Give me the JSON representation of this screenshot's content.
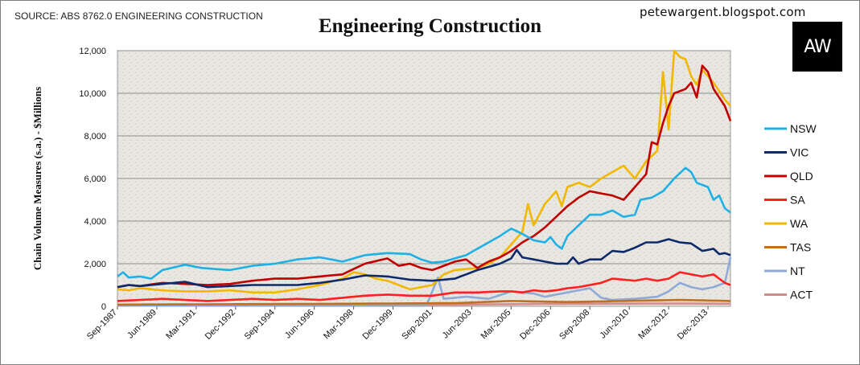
{
  "header": {
    "source": "SOURCE: ABS 8762.0 ENGINEERING CONSTRUCTION",
    "blog": "petewargent.blogspot.com",
    "logo_text": "AW"
  },
  "chart_data": {
    "type": "line",
    "title": "Engineering Construction",
    "xlabel": "",
    "ylabel": "Chain Volume Measures (s.a.) - $Millions",
    "ylim": [
      0,
      12000
    ],
    "yticks": [
      0,
      2000,
      4000,
      6000,
      8000,
      10000,
      12000
    ],
    "ytick_labels": [
      "0",
      "2,000",
      "4,000",
      "6,000",
      "8,000",
      "10,000",
      "12,000"
    ],
    "x_start_label": "Sep-1987",
    "x_period": "quarterly",
    "x_count": 110,
    "xtick_labels": [
      "Sep-1987",
      "Jun-1989",
      "Mar-1991",
      "Dec-1992",
      "Sep-1994",
      "Jun-1996",
      "Mar-1998",
      "Dec-1999",
      "Sep-2001",
      "Jun-2003",
      "Mar-2005",
      "Dec-2006",
      "Sep-2008",
      "Jun-2010",
      "Mar-2012",
      "Dec-2013"
    ],
    "xtick_index": [
      0,
      7,
      14,
      21,
      28,
      35,
      42,
      49,
      56,
      63,
      70,
      77,
      84,
      91,
      98,
      105
    ],
    "grid": true,
    "legend_position": "right",
    "series": [
      {
        "name": "NSW",
        "color": "#1fb0e6",
        "knots": [
          [
            0,
            1400
          ],
          [
            1,
            1600
          ],
          [
            2,
            1350
          ],
          [
            4,
            1400
          ],
          [
            6,
            1300
          ],
          [
            8,
            1700
          ],
          [
            12,
            1950
          ],
          [
            15,
            1800
          ],
          [
            20,
            1700
          ],
          [
            24,
            1900
          ],
          [
            28,
            2000
          ],
          [
            32,
            2200
          ],
          [
            36,
            2300
          ],
          [
            40,
            2100
          ],
          [
            44,
            2400
          ],
          [
            48,
            2500
          ],
          [
            52,
            2450
          ],
          [
            54,
            2200
          ],
          [
            56,
            2050
          ],
          [
            58,
            2100
          ],
          [
            60,
            2250
          ],
          [
            62,
            2400
          ],
          [
            64,
            2700
          ],
          [
            66,
            3000
          ],
          [
            68,
            3300
          ],
          [
            70,
            3650
          ],
          [
            72,
            3400
          ],
          [
            74,
            3100
          ],
          [
            76,
            3000
          ],
          [
            77,
            3250
          ],
          [
            78,
            2900
          ],
          [
            79,
            2700
          ],
          [
            80,
            3300
          ],
          [
            82,
            3800
          ],
          [
            84,
            4300
          ],
          [
            86,
            4300
          ],
          [
            88,
            4500
          ],
          [
            90,
            4200
          ],
          [
            92,
            4300
          ],
          [
            93,
            5000
          ],
          [
            95,
            5100
          ],
          [
            97,
            5400
          ],
          [
            99,
            6000
          ],
          [
            101,
            6500
          ],
          [
            102,
            6300
          ],
          [
            103,
            5800
          ],
          [
            105,
            5600
          ],
          [
            106,
            5000
          ],
          [
            107,
            5200
          ],
          [
            108,
            4600
          ],
          [
            109,
            4400
          ]
        ]
      },
      {
        "name": "VIC",
        "color": "#0d2a6b",
        "knots": [
          [
            0,
            900
          ],
          [
            2,
            1000
          ],
          [
            4,
            950
          ],
          [
            8,
            1050
          ],
          [
            12,
            1150
          ],
          [
            16,
            900
          ],
          [
            20,
            950
          ],
          [
            24,
            1000
          ],
          [
            28,
            1000
          ],
          [
            32,
            1000
          ],
          [
            36,
            1100
          ],
          [
            40,
            1250
          ],
          [
            44,
            1450
          ],
          [
            48,
            1400
          ],
          [
            52,
            1250
          ],
          [
            56,
            1200
          ],
          [
            60,
            1300
          ],
          [
            64,
            1700
          ],
          [
            68,
            2000
          ],
          [
            70,
            2250
          ],
          [
            71,
            2650
          ],
          [
            72,
            2300
          ],
          [
            74,
            2200
          ],
          [
            76,
            2100
          ],
          [
            78,
            2000
          ],
          [
            80,
            2000
          ],
          [
            81,
            2300
          ],
          [
            82,
            2000
          ],
          [
            84,
            2200
          ],
          [
            86,
            2200
          ],
          [
            88,
            2600
          ],
          [
            90,
            2550
          ],
          [
            92,
            2750
          ],
          [
            94,
            3000
          ],
          [
            96,
            3000
          ],
          [
            98,
            3150
          ],
          [
            100,
            3000
          ],
          [
            102,
            2950
          ],
          [
            104,
            2600
          ],
          [
            106,
            2700
          ],
          [
            107,
            2450
          ],
          [
            108,
            2500
          ],
          [
            109,
            2400
          ]
        ]
      },
      {
        "name": "QLD",
        "color": "#c00000",
        "knots": [
          [
            0,
            900
          ],
          [
            2,
            1000
          ],
          [
            4,
            950
          ],
          [
            8,
            1100
          ],
          [
            12,
            1050
          ],
          [
            16,
            1000
          ],
          [
            20,
            1050
          ],
          [
            24,
            1200
          ],
          [
            28,
            1300
          ],
          [
            32,
            1300
          ],
          [
            36,
            1400
          ],
          [
            40,
            1500
          ],
          [
            44,
            2000
          ],
          [
            48,
            2250
          ],
          [
            50,
            1900
          ],
          [
            52,
            2000
          ],
          [
            54,
            1800
          ],
          [
            56,
            1700
          ],
          [
            58,
            1900
          ],
          [
            60,
            2100
          ],
          [
            62,
            2200
          ],
          [
            64,
            1800
          ],
          [
            66,
            2100
          ],
          [
            68,
            2300
          ],
          [
            70,
            2600
          ],
          [
            71,
            2800
          ],
          [
            72,
            3000
          ],
          [
            74,
            3300
          ],
          [
            76,
            3700
          ],
          [
            78,
            4200
          ],
          [
            80,
            4700
          ],
          [
            82,
            5100
          ],
          [
            84,
            5400
          ],
          [
            86,
            5300
          ],
          [
            88,
            5200
          ],
          [
            90,
            5000
          ],
          [
            92,
            5600
          ],
          [
            94,
            6200
          ],
          [
            95,
            7700
          ],
          [
            96,
            7600
          ],
          [
            97,
            8600
          ],
          [
            98,
            9400
          ],
          [
            99,
            10000
          ],
          [
            101,
            10200
          ],
          [
            102,
            10500
          ],
          [
            103,
            9800
          ],
          [
            104,
            11300
          ],
          [
            105,
            11000
          ],
          [
            106,
            10200
          ],
          [
            108,
            9400
          ],
          [
            109,
            8700
          ]
        ]
      },
      {
        "name": "SA",
        "color": "#ff2020",
        "knots": [
          [
            0,
            250
          ],
          [
            4,
            300
          ],
          [
            8,
            350
          ],
          [
            12,
            300
          ],
          [
            16,
            250
          ],
          [
            20,
            300
          ],
          [
            24,
            350
          ],
          [
            28,
            300
          ],
          [
            32,
            350
          ],
          [
            36,
            300
          ],
          [
            40,
            400
          ],
          [
            44,
            500
          ],
          [
            48,
            550
          ],
          [
            52,
            500
          ],
          [
            56,
            500
          ],
          [
            60,
            650
          ],
          [
            64,
            650
          ],
          [
            68,
            700
          ],
          [
            70,
            700
          ],
          [
            72,
            650
          ],
          [
            74,
            750
          ],
          [
            76,
            700
          ],
          [
            78,
            750
          ],
          [
            80,
            850
          ],
          [
            82,
            900
          ],
          [
            84,
            1000
          ],
          [
            86,
            1100
          ],
          [
            88,
            1300
          ],
          [
            90,
            1250
          ],
          [
            92,
            1200
          ],
          [
            94,
            1300
          ],
          [
            96,
            1200
          ],
          [
            98,
            1300
          ],
          [
            100,
            1600
          ],
          [
            102,
            1500
          ],
          [
            104,
            1400
          ],
          [
            106,
            1500
          ],
          [
            108,
            1100
          ],
          [
            109,
            1000
          ]
        ]
      },
      {
        "name": "WA",
        "color": "#f2b800",
        "knots": [
          [
            0,
            800
          ],
          [
            2,
            750
          ],
          [
            4,
            850
          ],
          [
            8,
            750
          ],
          [
            12,
            700
          ],
          [
            16,
            700
          ],
          [
            20,
            750
          ],
          [
            24,
            650
          ],
          [
            28,
            650
          ],
          [
            32,
            800
          ],
          [
            36,
            1000
          ],
          [
            40,
            1300
          ],
          [
            42,
            1600
          ],
          [
            44,
            1500
          ],
          [
            46,
            1300
          ],
          [
            48,
            1200
          ],
          [
            52,
            800
          ],
          [
            56,
            1000
          ],
          [
            58,
            1500
          ],
          [
            60,
            1700
          ],
          [
            64,
            1800
          ],
          [
            66,
            2000
          ],
          [
            68,
            2300
          ],
          [
            70,
            2900
          ],
          [
            72,
            3500
          ],
          [
            73,
            4800
          ],
          [
            74,
            3800
          ],
          [
            76,
            4800
          ],
          [
            78,
            5400
          ],
          [
            79,
            4700
          ],
          [
            80,
            5600
          ],
          [
            82,
            5800
          ],
          [
            84,
            5600
          ],
          [
            86,
            6000
          ],
          [
            88,
            6300
          ],
          [
            90,
            6600
          ],
          [
            92,
            6000
          ],
          [
            94,
            6800
          ],
          [
            96,
            7300
          ],
          [
            97,
            11000
          ],
          [
            98,
            8300
          ],
          [
            99,
            12000
          ],
          [
            100,
            11700
          ],
          [
            101,
            11600
          ],
          [
            102,
            10800
          ],
          [
            103,
            10400
          ],
          [
            104,
            11100
          ],
          [
            106,
            10500
          ],
          [
            108,
            9700
          ],
          [
            109,
            9400
          ]
        ]
      },
      {
        "name": "TAS",
        "color": "#c0701e",
        "knots": [
          [
            0,
            80
          ],
          [
            20,
            100
          ],
          [
            40,
            120
          ],
          [
            60,
            150
          ],
          [
            70,
            250
          ],
          [
            80,
            200
          ],
          [
            90,
            250
          ],
          [
            100,
            300
          ],
          [
            109,
            250
          ]
        ]
      },
      {
        "name": "NT",
        "color": "#8faad6",
        "knots": [
          [
            0,
            30
          ],
          [
            20,
            40
          ],
          [
            40,
            60
          ],
          [
            55,
            80
          ],
          [
            57,
            1350
          ],
          [
            58,
            350
          ],
          [
            62,
            450
          ],
          [
            66,
            350
          ],
          [
            70,
            700
          ],
          [
            74,
            600
          ],
          [
            76,
            450
          ],
          [
            80,
            650
          ],
          [
            84,
            850
          ],
          [
            86,
            400
          ],
          [
            88,
            300
          ],
          [
            92,
            350
          ],
          [
            96,
            450
          ],
          [
            98,
            700
          ],
          [
            100,
            1100
          ],
          [
            102,
            900
          ],
          [
            104,
            800
          ],
          [
            106,
            900
          ],
          [
            108,
            1100
          ],
          [
            109,
            2300
          ]
        ]
      },
      {
        "name": "ACT",
        "color": "#d58b8b",
        "knots": [
          [
            0,
            40
          ],
          [
            30,
            60
          ],
          [
            60,
            80
          ],
          [
            80,
            120
          ],
          [
            100,
            130
          ],
          [
            109,
            120
          ]
        ]
      }
    ]
  }
}
